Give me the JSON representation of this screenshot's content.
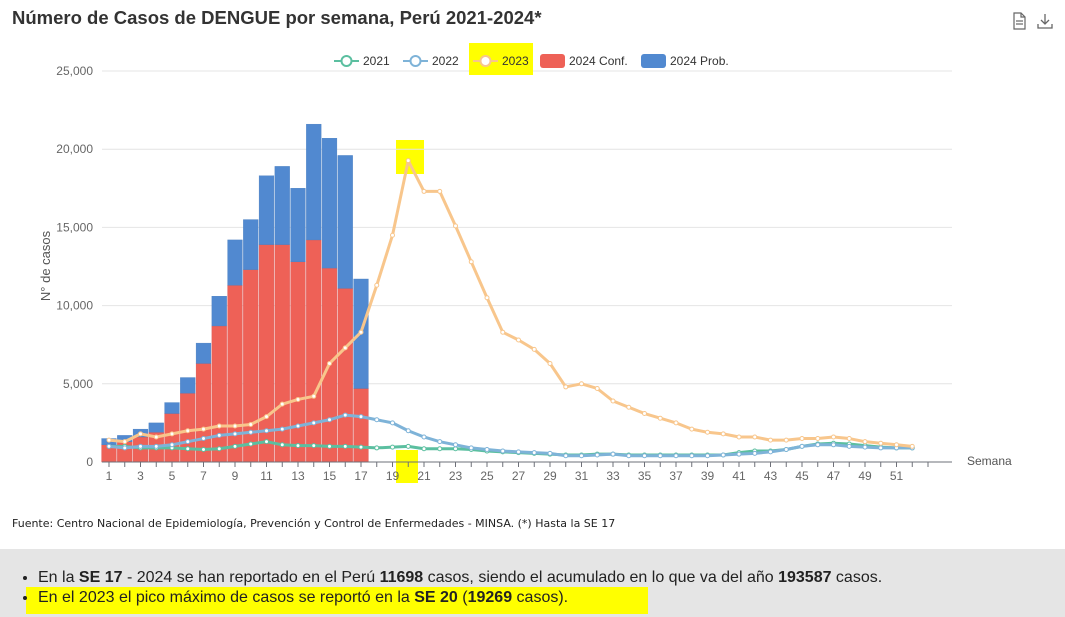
{
  "header": {
    "title": "Número de Casos de DENGUE por semana, Perú 2021-2024*",
    "icons": [
      "document-icon",
      "download-icon"
    ]
  },
  "chart_data": {
    "type": "bar+line",
    "ylabel": "N° de casos",
    "xlabel": "Semana",
    "ylim": [
      0,
      25000
    ],
    "yticks": [
      0,
      5000,
      10000,
      15000,
      20000,
      25000
    ],
    "ytick_labels": [
      "0",
      "5,000",
      "10,000",
      "15,000",
      "20,000",
      "25,000"
    ],
    "xlim": [
      1,
      53
    ],
    "xticks": [
      1,
      3,
      5,
      7,
      9,
      11,
      13,
      15,
      17,
      19,
      21,
      23,
      25,
      27,
      29,
      31,
      33,
      35,
      37,
      39,
      41,
      43,
      45,
      47,
      49,
      51
    ],
    "grid": "horizontal",
    "legend_position": "top-center",
    "legend": [
      {
        "label": "2021",
        "type": "line",
        "color": "#5bbfa0"
      },
      {
        "label": "2022",
        "type": "line",
        "color": "#7eb3d8"
      },
      {
        "label": "2023",
        "type": "line",
        "color": "#f8c68c"
      },
      {
        "label": "2024 Conf.",
        "type": "bar",
        "color": "#ee6157"
      },
      {
        "label": "2024 Prob.",
        "type": "bar",
        "color": "#5189d0"
      }
    ],
    "bars_weeks": [
      1,
      2,
      3,
      4,
      5,
      6,
      7,
      8,
      9,
      10,
      11,
      12,
      13,
      14,
      15,
      16,
      17
    ],
    "bars_conf": [
      1100,
      1300,
      1600,
      1900,
      3100,
      4400,
      6300,
      8700,
      11300,
      12300,
      13900,
      13900,
      12800,
      14200,
      12400,
      11100,
      4700
    ],
    "bars_prob": [
      400,
      400,
      500,
      600,
      700,
      1000,
      1300,
      1900,
      2900,
      3200,
      4400,
      5000,
      4700,
      7400,
      8300,
      8500,
      7000
    ],
    "series": [
      {
        "name": "2021",
        "color": "#5bbfa0",
        "x": [
          1,
          2,
          3,
          4,
          5,
          6,
          7,
          8,
          9,
          10,
          11,
          12,
          13,
          14,
          15,
          16,
          17,
          18,
          19,
          20,
          21,
          22,
          23,
          24,
          25,
          26,
          27,
          28,
          29,
          30,
          31,
          32,
          33,
          34,
          35,
          36,
          37,
          38,
          39,
          40,
          41,
          42,
          43,
          44,
          45,
          46,
          47,
          48,
          49,
          50,
          51,
          52
        ],
        "y": [
          1000,
          1000,
          900,
          900,
          900,
          850,
          800,
          850,
          1000,
          1150,
          1300,
          1100,
          1050,
          1050,
          1000,
          1000,
          950,
          900,
          950,
          1000,
          850,
          850,
          850,
          800,
          700,
          650,
          600,
          550,
          500,
          450,
          450,
          500,
          500,
          450,
          450,
          450,
          450,
          450,
          450,
          450,
          600,
          700,
          700,
          800,
          1000,
          1150,
          1200,
          1150,
          1050,
          950,
          900,
          900
        ]
      },
      {
        "name": "2022",
        "color": "#7eb3d8",
        "x": [
          1,
          2,
          3,
          4,
          5,
          6,
          7,
          8,
          9,
          10,
          11,
          12,
          13,
          14,
          15,
          16,
          17,
          18,
          19,
          20,
          21,
          22,
          23,
          24,
          25,
          26,
          27,
          28,
          29,
          30,
          31,
          32,
          33,
          34,
          35,
          36,
          37,
          38,
          39,
          40,
          41,
          42,
          43,
          44,
          45,
          46,
          47,
          48,
          49,
          50,
          51,
          52
        ],
        "y": [
          1000,
          900,
          1000,
          1000,
          1100,
          1300,
          1500,
          1700,
          1800,
          1900,
          2000,
          2100,
          2300,
          2500,
          2700,
          3000,
          2900,
          2700,
          2500,
          2000,
          1600,
          1300,
          1100,
          900,
          800,
          700,
          650,
          600,
          550,
          400,
          400,
          450,
          500,
          400,
          400,
          400,
          400,
          400,
          400,
          450,
          500,
          550,
          650,
          800,
          1000,
          1100,
          1100,
          1000,
          950,
          900,
          900,
          900
        ]
      },
      {
        "name": "2023",
        "color": "#f8c68c",
        "x": [
          1,
          2,
          3,
          4,
          5,
          6,
          7,
          8,
          9,
          10,
          11,
          12,
          13,
          14,
          15,
          16,
          17,
          18,
          19,
          20,
          21,
          22,
          23,
          24,
          25,
          26,
          27,
          28,
          29,
          30,
          31,
          32,
          33,
          34,
          35,
          36,
          37,
          38,
          39,
          40,
          41,
          42,
          43,
          44,
          45,
          46,
          47,
          48,
          49,
          50,
          51,
          52
        ],
        "y": [
          1400,
          1300,
          1800,
          1600,
          1800,
          2000,
          2100,
          2300,
          2300,
          2400,
          2900,
          3700,
          4000,
          4200,
          6300,
          7300,
          8300,
          11300,
          14500,
          19269,
          17300,
          17300,
          15100,
          12800,
          10500,
          8300,
          7800,
          7200,
          6300,
          4800,
          5000,
          4700,
          3900,
          3500,
          3100,
          2800,
          2500,
          2100,
          1900,
          1800,
          1600,
          1600,
          1400,
          1400,
          1500,
          1500,
          1600,
          1500,
          1300,
          1200,
          1100,
          1000
        ]
      }
    ]
  },
  "source_text": "Fuente: Centro Nacional de Epidemiología, Prevención y Control de Enfermedades - MINSA. (*) Hasta la SE 17",
  "summary": {
    "line1": {
      "a": "En la ",
      "b": "SE 17",
      "c": " - 2024 se han reportado en el Perú ",
      "d": "11698",
      "e": " casos, siendo el acumulado en lo que va del año ",
      "f": "193587",
      "g": " casos."
    },
    "line2": {
      "a": "En el 2023 el pico máximo de casos se reportó en la ",
      "b": "SE 20",
      "c": " (",
      "d": "19269",
      "e": " casos)."
    }
  },
  "highlight_color": "#ffff00"
}
